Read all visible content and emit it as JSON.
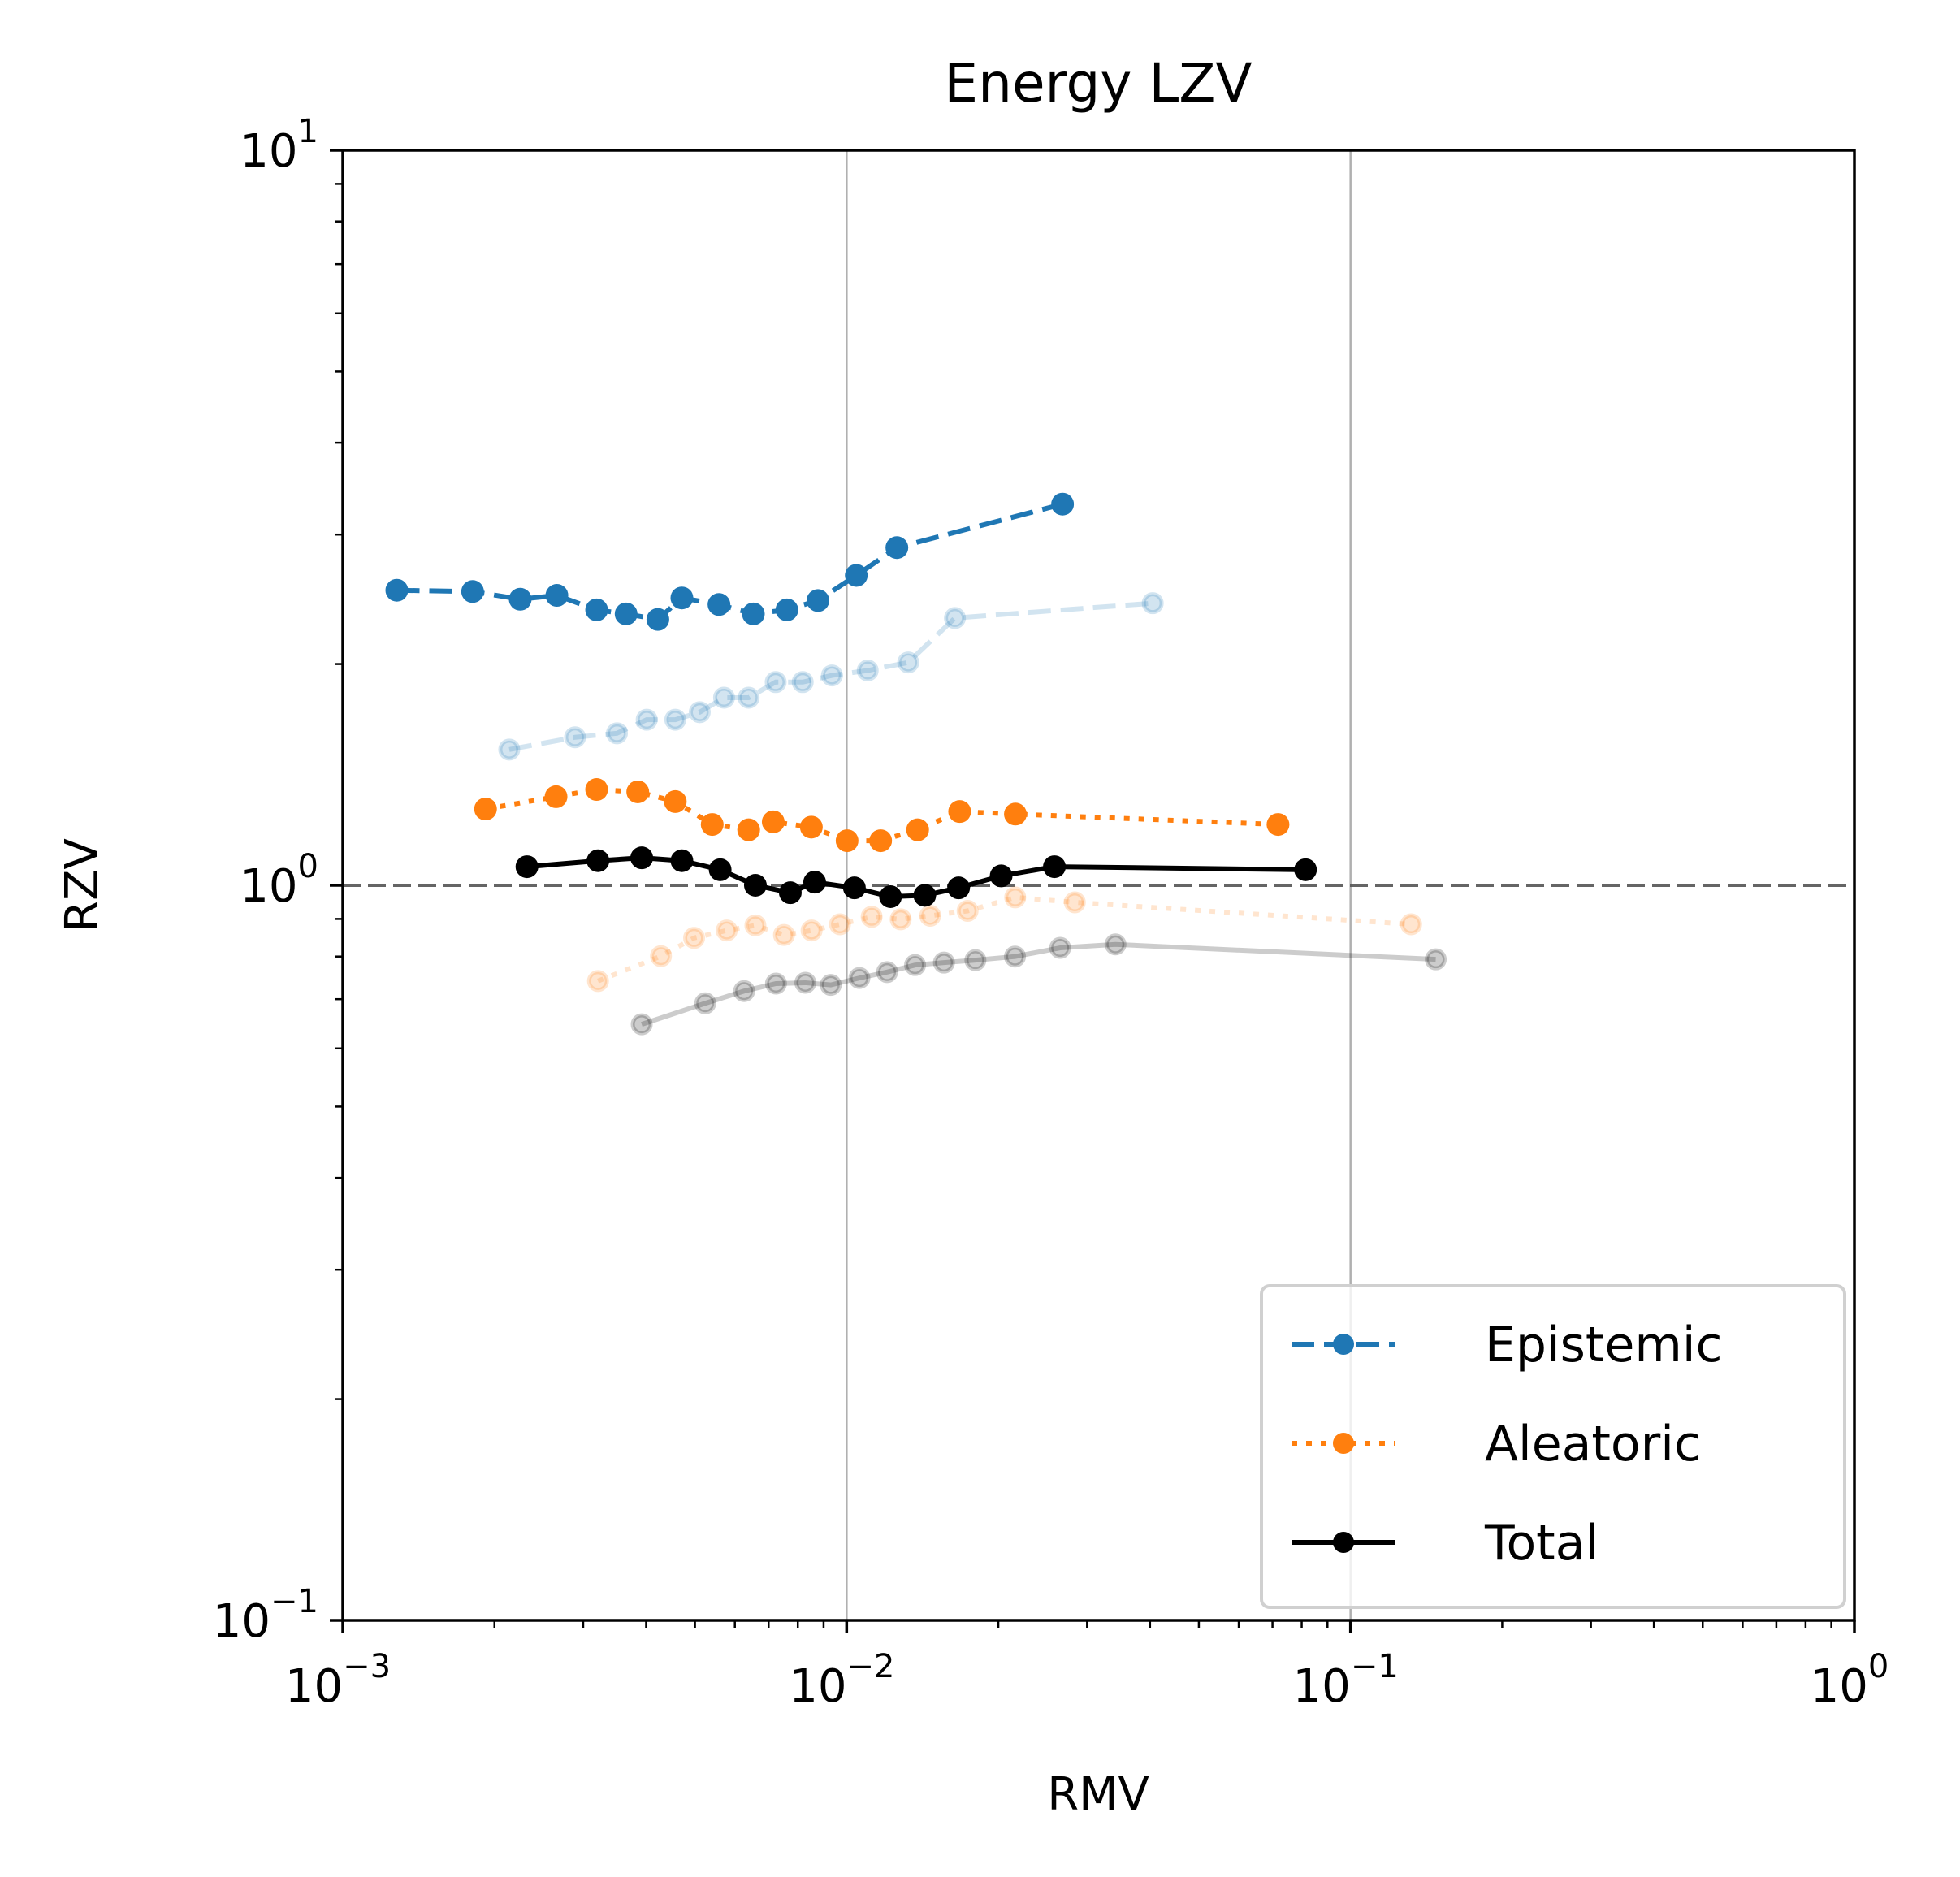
{
  "chart_data": {
    "type": "line",
    "title": "Energy LZV",
    "xlabel": "RMV",
    "ylabel": "RZV",
    "xscale": "log",
    "yscale": "log",
    "xlim": [
      0.001,
      1
    ],
    "ylim": [
      0.1,
      10
    ],
    "x_ticks": [
      {
        "value": 0.001,
        "base": "10",
        "exp": "−3"
      },
      {
        "value": 0.01,
        "base": "10",
        "exp": "−2"
      },
      {
        "value": 0.1,
        "base": "10",
        "exp": "−1"
      },
      {
        "value": 1,
        "base": "10",
        "exp": "0"
      }
    ],
    "y_ticks": [
      {
        "value": 0.1,
        "base": "10",
        "exp": "−1"
      },
      {
        "value": 1,
        "base": "10",
        "exp": "0"
      },
      {
        "value": 10,
        "base": "10",
        "exp": "1"
      }
    ],
    "grid": "x-major",
    "reference_line": {
      "y": 1,
      "style": "dashed",
      "color": "#555555"
    },
    "legend_position": "lower-right",
    "series": [
      {
        "name": "Epistemic",
        "color": "#1f77b4",
        "style": "dashed",
        "in_legend": true,
        "x": [
          0.00128,
          0.00181,
          0.00225,
          0.00266,
          0.00319,
          0.00365,
          0.00422,
          0.00471,
          0.00558,
          0.00653,
          0.00761,
          0.00877,
          0.01045,
          0.01258,
          0.02682
        ],
        "y": [
          2.52,
          2.51,
          2.45,
          2.48,
          2.37,
          2.34,
          2.3,
          2.46,
          2.41,
          2.34,
          2.37,
          2.44,
          2.64,
          2.88,
          3.3
        ]
      },
      {
        "name": "Epistemic (reference)",
        "color": "#1f77b4",
        "style": "dashed",
        "faded": true,
        "in_legend": false,
        "x": [
          0.00214,
          0.00289,
          0.0035,
          0.00401,
          0.00457,
          0.00511,
          0.00571,
          0.00639,
          0.00723,
          0.00818,
          0.00935,
          0.01101,
          0.01325,
          0.0164,
          0.0405
        ],
        "y": [
          1.53,
          1.59,
          1.61,
          1.68,
          1.68,
          1.72,
          1.8,
          1.8,
          1.89,
          1.89,
          1.93,
          1.96,
          2.01,
          2.31,
          2.42
        ]
      },
      {
        "name": "Aleatoric",
        "color": "#ff7f0e",
        "style": "dotted",
        "in_legend": true,
        "x": [
          0.00192,
          0.00265,
          0.00319,
          0.00385,
          0.00457,
          0.00541,
          0.00639,
          0.00715,
          0.00851,
          0.01002,
          0.01168,
          0.01383,
          0.01676,
          0.02162,
          0.07179
        ],
        "y": [
          1.27,
          1.32,
          1.35,
          1.34,
          1.3,
          1.21,
          1.19,
          1.22,
          1.2,
          1.15,
          1.15,
          1.19,
          1.26,
          1.25,
          1.21
        ]
      },
      {
        "name": "Aleatoric (reference)",
        "color": "#ff7f0e",
        "style": "dotted",
        "faded": true,
        "in_legend": false,
        "x": [
          0.00321,
          0.00428,
          0.00498,
          0.00578,
          0.00659,
          0.00751,
          0.00852,
          0.0097,
          0.01121,
          0.0128,
          0.01465,
          0.01738,
          0.0216,
          0.02837,
          0.1319
        ],
        "y": [
          0.741,
          0.801,
          0.848,
          0.868,
          0.882,
          0.856,
          0.868,
          0.885,
          0.906,
          0.899,
          0.909,
          0.923,
          0.963,
          0.948,
          0.885
        ]
      },
      {
        "name": "Total",
        "color": "#000000",
        "style": "solid",
        "in_legend": true,
        "x": [
          0.00232,
          0.00321,
          0.00392,
          0.00471,
          0.00561,
          0.00659,
          0.00773,
          0.00864,
          0.01036,
          0.01222,
          0.01429,
          0.01668,
          0.02026,
          0.02584,
          0.0814
        ],
        "y": [
          1.06,
          1.08,
          1.09,
          1.08,
          1.05,
          1.0,
          0.977,
          1.01,
          0.992,
          0.965,
          0.969,
          0.992,
          1.03,
          1.06,
          1.05
        ]
      },
      {
        "name": "Total (reference)",
        "color": "#000000",
        "style": "solid",
        "faded": true,
        "in_legend": false,
        "x": [
          0.00392,
          0.00524,
          0.00626,
          0.00724,
          0.00828,
          0.0093,
          0.0106,
          0.01203,
          0.01367,
          0.0156,
          0.01801,
          0.02158,
          0.02653,
          0.03416,
          0.1476
        ],
        "y": [
          0.647,
          0.691,
          0.718,
          0.735,
          0.737,
          0.732,
          0.748,
          0.762,
          0.779,
          0.785,
          0.791,
          0.8,
          0.822,
          0.831,
          0.793
        ]
      }
    ]
  }
}
